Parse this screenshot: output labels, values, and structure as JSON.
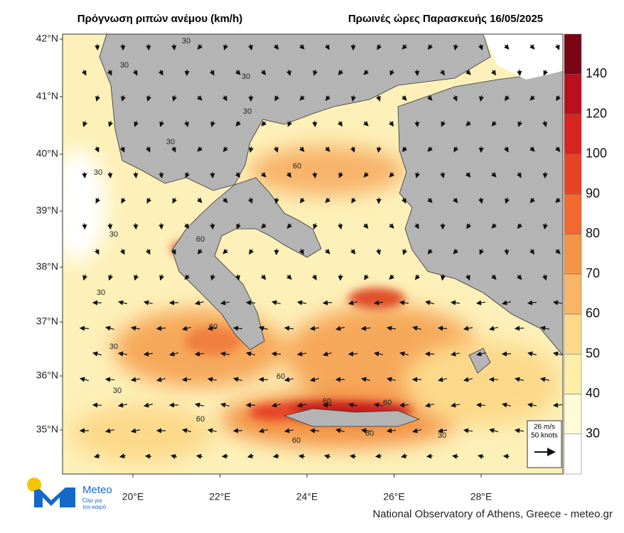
{
  "title": "Πρόγνωση ριπών ανέμου (km/h)",
  "subtitle": "Πρωινές ώρες Παρασκευής 16/05/2025",
  "lat_labels": [
    "42°N",
    "41°N",
    "40°N",
    "39°N",
    "38°N",
    "37°N",
    "36°N",
    "35°N"
  ],
  "lon_labels": [
    "20°E",
    "22°E",
    "24°E",
    "26°E",
    "28°E"
  ],
  "colorbar": {
    "labels": [
      30,
      40,
      50,
      60,
      70,
      80,
      90,
      100,
      120,
      140
    ],
    "colors": [
      "#ffffff",
      "#fffbd8",
      "#fdeea8",
      "#fcd98a",
      "#f8b565",
      "#f39447",
      "#f06a32",
      "#e74425",
      "#d62520",
      "#b8101c",
      "#7a0514"
    ]
  },
  "scale_legend": {
    "speed": "26 m/s",
    "knots": "50 knots"
  },
  "contour_labels": [
    "30",
    "30",
    "30",
    "30",
    "30",
    "30",
    "30",
    "30",
    "30",
    "30",
    "60",
    "60",
    "60",
    "60",
    "60",
    "60",
    "60",
    "60",
    "60",
    "30"
  ],
  "logo": {
    "name": "Meteo",
    "tagline_1": "Όλα για",
    "tagline_2": "τον καιρό"
  },
  "footer": "National Observatory of Athens, Greece - meteo.gr"
}
